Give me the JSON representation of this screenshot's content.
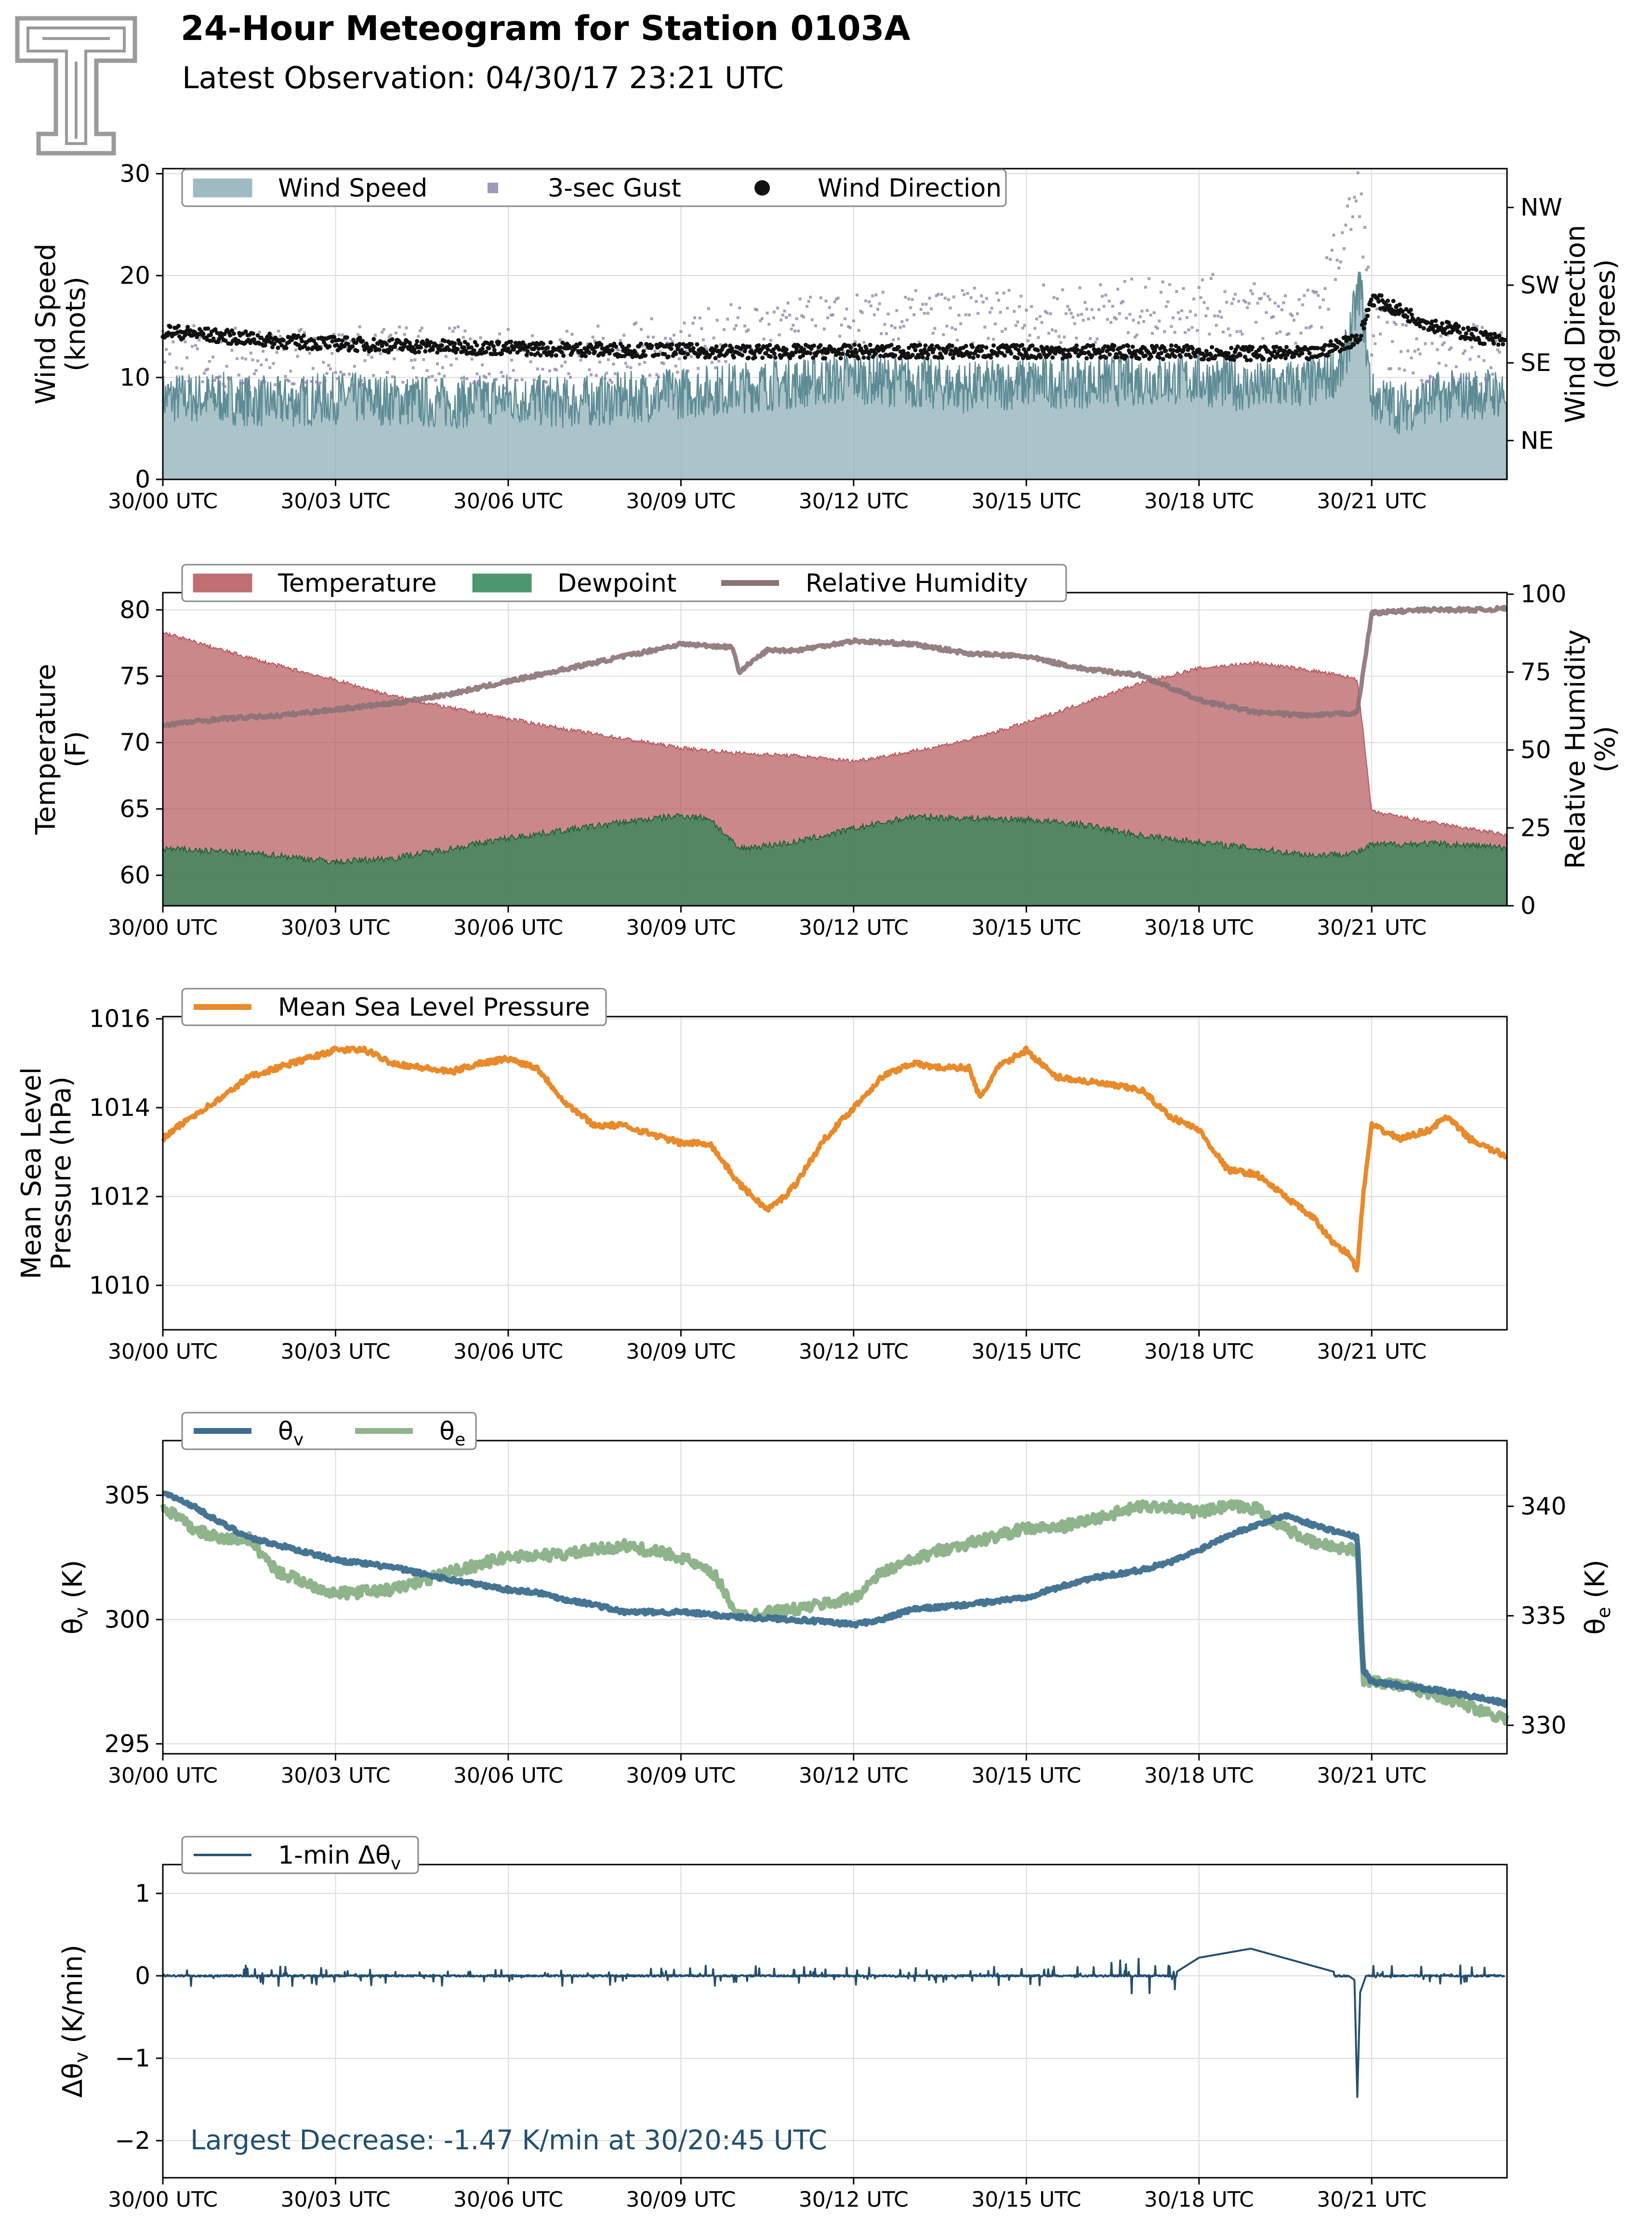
{
  "header": {
    "title": "24-Hour Meteogram for Station 0103A",
    "subtitle": "Latest Observation: 04/30/17 23:21 UTC"
  },
  "colors": {
    "wind_speed": "#8fb0b8",
    "wind_speed_line": "#5e8c95",
    "gust": "#8a7fa6",
    "wind_direction": "#111111",
    "temperature": "#b5555a",
    "dewpoint": "#2e8555",
    "relative_humidity": "#8a7275",
    "pressure": "#e88a2a",
    "theta_v": "#3c6e8e",
    "theta_e": "#8fb48c",
    "delta_theta": "#234f6e"
  },
  "x_axis": {
    "range_hours": [
      0,
      23.35
    ],
    "ticks": [
      {
        "hour": 0,
        "label": "30/00 UTC"
      },
      {
        "hour": 3,
        "label": "30/03 UTC"
      },
      {
        "hour": 6,
        "label": "30/06 UTC"
      },
      {
        "hour": 9,
        "label": "30/09 UTC"
      },
      {
        "hour": 12,
        "label": "30/12 UTC"
      },
      {
        "hour": 15,
        "label": "30/15 UTC"
      },
      {
        "hour": 18,
        "label": "30/18 UTC"
      },
      {
        "hour": 21,
        "label": "30/21 UTC"
      }
    ]
  },
  "chart_data": [
    {
      "type": "area",
      "id": "wind",
      "legend": [
        {
          "label": "Wind Speed",
          "kind": "patch",
          "color_key": "wind_speed"
        },
        {
          "label": "3-sec Gust",
          "kind": "square",
          "color_key": "gust"
        },
        {
          "label": "Wind Direction",
          "kind": "dot",
          "color_key": "wind_direction"
        }
      ],
      "ylabel": [
        "Wind Speed",
        "(knots)"
      ],
      "ylim": [
        0,
        30.5
      ],
      "yticks": [
        0,
        10,
        20,
        30
      ],
      "y2label": [
        "Wind Direction",
        "(degrees)"
      ],
      "y2lim": [
        0,
        360
      ],
      "y2ticks": [
        {
          "value": 45,
          "label": "NE"
        },
        {
          "value": 135,
          "label": "SE"
        },
        {
          "value": 225,
          "label": "SW"
        },
        {
          "value": 315,
          "label": "NW"
        }
      ],
      "series": [
        {
          "name": "Wind Speed",
          "x": [
            0,
            1,
            2,
            3,
            4,
            5,
            6,
            7,
            8,
            9,
            10,
            11,
            12,
            13,
            14,
            15,
            16,
            17,
            18,
            19,
            20,
            20.5,
            20.8,
            21,
            21.5,
            22,
            23,
            23.35
          ],
          "y": [
            8,
            8,
            7.5,
            8,
            7.8,
            7.5,
            8,
            7.5,
            8,
            8.5,
            9,
            9.5,
            10,
            9.5,
            9,
            9.5,
            9.5,
            9.8,
            9.8,
            9,
            9.5,
            11,
            19,
            8,
            7,
            8,
            8.5,
            8.5
          ]
        },
        {
          "name": "3-sec Gust",
          "x": [
            0,
            2,
            4,
            6,
            8,
            10,
            12,
            14,
            16,
            18,
            20,
            20.8,
            21,
            22,
            23.35
          ],
          "y": [
            12,
            11.5,
            12,
            11.5,
            12,
            14,
            15,
            15.5,
            16,
            17,
            15.5,
            28,
            14,
            12,
            12
          ]
        },
        {
          "name": "Wind Direction",
          "x": [
            0,
            2,
            4,
            6,
            8,
            10,
            12,
            14,
            16,
            18,
            20,
            20.8,
            21,
            22,
            23.35
          ],
          "y": [
            172,
            160,
            155,
            152,
            150,
            148,
            148,
            148,
            148,
            147,
            145,
            165,
            210,
            180,
            158
          ]
        }
      ]
    },
    {
      "type": "area",
      "id": "temp",
      "legend": [
        {
          "label": "Temperature",
          "kind": "patch",
          "color_key": "temperature"
        },
        {
          "label": "Dewpoint",
          "kind": "patch",
          "color_key": "dewpoint"
        },
        {
          "label": "Relative Humidity",
          "kind": "line",
          "color_key": "relative_humidity"
        }
      ],
      "ylabel": [
        "Temperature",
        "(F)"
      ],
      "ylim": [
        57.7,
        81.3
      ],
      "yticks": [
        60,
        65,
        70,
        75,
        80
      ],
      "y2label": [
        "Relative Humidity",
        "(%)"
      ],
      "y2lim": [
        0,
        100.5
      ],
      "y2ticks": [
        0,
        25,
        50,
        75,
        100
      ],
      "series": [
        {
          "name": "Temperature",
          "x": [
            0,
            1,
            2,
            3,
            4,
            5,
            6,
            7,
            8,
            9,
            10,
            11,
            12,
            13,
            14,
            15,
            16,
            17,
            18,
            19,
            20,
            20.75,
            21,
            22,
            23,
            23.35
          ],
          "y": [
            78.3,
            77,
            75.8,
            74.7,
            73.5,
            72.6,
            71.8,
            71,
            70.3,
            69.6,
            69.2,
            69,
            68.6,
            69.3,
            70.2,
            71.5,
            73,
            74.5,
            75.6,
            76,
            75.4,
            74.8,
            64.8,
            64,
            63.3,
            63
          ]
        },
        {
          "name": "Dewpoint",
          "x": [
            0,
            1,
            2,
            3,
            4,
            5,
            6,
            7,
            8,
            9,
            9.5,
            10,
            11,
            12,
            13,
            14,
            15,
            16,
            17,
            18,
            19,
            20,
            20.75,
            21,
            22,
            23,
            23.35
          ],
          "y": [
            62,
            61.8,
            61.5,
            61,
            61.3,
            62,
            62.8,
            63.4,
            64,
            64.5,
            64.3,
            62,
            62.5,
            63.5,
            64.4,
            64.3,
            64.2,
            63.8,
            63,
            62.5,
            62,
            61.5,
            61.7,
            62.3,
            62.4,
            62.2,
            62
          ]
        },
        {
          "name": "Relative Humidity",
          "x": [
            0,
            1,
            2,
            3,
            4,
            5,
            6,
            7,
            8,
            9,
            9.9,
            10,
            10.5,
            11,
            12,
            13,
            14,
            15,
            16,
            17,
            18,
            19,
            20,
            20.75,
            21,
            22,
            23,
            23.35
          ],
          "y": [
            58,
            60,
            61,
            63,
            65,
            68,
            72,
            76,
            80,
            84,
            83,
            75,
            82,
            82,
            85,
            84,
            81,
            80,
            76,
            74,
            66,
            62,
            61,
            62,
            94,
            95,
            95,
            95.5
          ]
        }
      ]
    },
    {
      "type": "line",
      "id": "pressure",
      "legend": [
        {
          "label": "Mean Sea Level Pressure",
          "kind": "line",
          "color_key": "pressure"
        }
      ],
      "ylabel": [
        "Mean Sea Level",
        "Pressure (hPa)"
      ],
      "ylim": [
        1009,
        1016.05
      ],
      "yticks": [
        1010,
        1012,
        1014,
        1016
      ],
      "series": [
        {
          "name": "Mean Sea Level Pressure",
          "x": [
            0,
            0.5,
            1,
            1.5,
            2,
            2.5,
            3,
            3.5,
            4,
            4.5,
            5,
            5.5,
            6,
            6.5,
            7,
            7.5,
            8,
            8.5,
            9,
            9.5,
            10,
            10.5,
            10.8,
            11,
            11.5,
            12,
            12.5,
            13,
            13.5,
            14,
            14.2,
            14.5,
            15,
            15.5,
            16,
            17,
            17.5,
            18,
            18.5,
            19,
            19.5,
            20,
            20.3,
            20.6,
            20.75,
            20.85,
            21,
            21.5,
            22,
            22.3,
            22.7,
            23,
            23.35
          ],
          "y": [
            1013.3,
            1013.8,
            1014.2,
            1014.7,
            1014.9,
            1015.1,
            1015.3,
            1015.3,
            1015.0,
            1014.9,
            1014.8,
            1015.0,
            1015.1,
            1014.9,
            1014.1,
            1013.6,
            1013.6,
            1013.4,
            1013.2,
            1013.2,
            1012.3,
            1011.7,
            1012.0,
            1012.3,
            1013.3,
            1014.0,
            1014.7,
            1015.0,
            1014.9,
            1014.9,
            1014.2,
            1014.9,
            1015.3,
            1014.7,
            1014.6,
            1014.4,
            1013.8,
            1013.5,
            1012.6,
            1012.5,
            1012.0,
            1011.5,
            1011.0,
            1010.7,
            1010.35,
            1012.0,
            1013.6,
            1013.3,
            1013.5,
            1013.8,
            1013.3,
            1013.1,
            1012.9
          ]
        }
      ]
    },
    {
      "type": "line",
      "id": "theta",
      "legend": [
        {
          "label": "θ",
          "sub": "v",
          "kind": "line",
          "color_key": "theta_v"
        },
        {
          "label": "θ",
          "sub": "e",
          "kind": "line",
          "color_key": "theta_e"
        }
      ],
      "ylabel": [
        "θv (K)"
      ],
      "ylim": [
        294.6,
        307.2
      ],
      "yticks": [
        295,
        300,
        305
      ],
      "y2label": [
        "θe (K)"
      ],
      "y2lim": [
        328.7,
        343
      ],
      "y2ticks": [
        330,
        335,
        340
      ],
      "series": [
        {
          "name": "θv",
          "axis": "left",
          "x": [
            0,
            0.5,
            1,
            1.5,
            2,
            3,
            4,
            5,
            6,
            6.5,
            7,
            7.5,
            8,
            9,
            10,
            11,
            12,
            12.5,
            13,
            14,
            15,
            16,
            17,
            17.5,
            18,
            18.5,
            19,
            19.5,
            20,
            20.75,
            20.85,
            21,
            22,
            23,
            23.35
          ],
          "y": [
            305.1,
            304.6,
            303.9,
            303.3,
            303.0,
            302.4,
            302.1,
            301.6,
            301.2,
            301.1,
            300.8,
            300.6,
            300.3,
            300.3,
            300.1,
            300.0,
            299.8,
            300.0,
            300.4,
            300.6,
            300.9,
            301.6,
            302.0,
            302.3,
            302.8,
            303.4,
            303.8,
            304.2,
            303.8,
            303.3,
            298.0,
            297.5,
            297.2,
            296.8,
            296.6
          ]
        },
        {
          "name": "θe",
          "axis": "right",
          "x": [
            0,
            0.5,
            1,
            1.5,
            2,
            3,
            4,
            5,
            6,
            7,
            8,
            9,
            9.6,
            10,
            11,
            12,
            12.5,
            13,
            13.5,
            14,
            15,
            15.5,
            16,
            17,
            17.5,
            18,
            18.5,
            19,
            19.5,
            20,
            20.75,
            20.85,
            21,
            22,
            23,
            23.35
          ],
          "y": [
            340,
            339,
            338.5,
            338.5,
            337,
            336,
            336.2,
            337,
            337.7,
            337.8,
            338.2,
            337.7,
            336.8,
            335,
            335.3,
            335.8,
            337,
            337.5,
            338,
            338.3,
            339,
            339,
            339.3,
            340,
            340,
            339.7,
            340,
            339.9,
            339,
            338.3,
            338,
            332,
            332.1,
            331.5,
            330.6,
            330.3
          ]
        }
      ]
    },
    {
      "type": "line",
      "id": "delta",
      "legend": [
        {
          "label": "1-min Δθ",
          "sub": "v",
          "kind": "line",
          "color_key": "delta_theta"
        }
      ],
      "ylabel": [
        "Δθv (K/min)"
      ],
      "ylim": [
        -2.45,
        1.35
      ],
      "yticks": [
        -2,
        -1,
        0,
        1
      ],
      "ytick_labels": [
        "−2",
        "−1",
        "0",
        "1"
      ],
      "annotation": "Largest Decrease: -1.47 K/min at 30/20:45 UTC",
      "series": [
        {
          "name": "1-min Δθv",
          "x": [
            0,
            17.5,
            18,
            18.9,
            20.6,
            20.7,
            20.75,
            20.8,
            20.9,
            21,
            23.35
          ],
          "y": [
            0,
            0,
            0.22,
            0.33,
            0,
            -0.05,
            -1.47,
            -0.2,
            0,
            0,
            0
          ]
        }
      ]
    }
  ]
}
